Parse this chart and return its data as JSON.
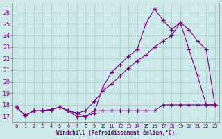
{
  "xlabel": "Windchill (Refroidissement éolien,°C)",
  "background_color": "#cce8e8",
  "line_color": "#800080",
  "grid_color": "#aacccc",
  "xlim": [
    -0.5,
    23.5
  ],
  "ylim": [
    16.5,
    26.8
  ],
  "xticks": [
    0,
    1,
    2,
    3,
    4,
    5,
    6,
    7,
    8,
    9,
    10,
    11,
    12,
    13,
    14,
    15,
    16,
    17,
    18,
    19,
    20,
    21,
    22,
    23
  ],
  "yticks": [
    17,
    18,
    19,
    20,
    21,
    22,
    23,
    24,
    25,
    26
  ],
  "line1_x": [
    0,
    1,
    2,
    3,
    4,
    5,
    6,
    7,
    8,
    9,
    10,
    11,
    12,
    13,
    14,
    15,
    16,
    17,
    18,
    19,
    20,
    21,
    22,
    23
  ],
  "line1_y": [
    17.8,
    17.1,
    17.5,
    17.5,
    17.6,
    17.8,
    17.5,
    17.0,
    17.0,
    17.5,
    17.5,
    17.5,
    17.5,
    17.5,
    17.5,
    17.5,
    17.5,
    18.0,
    18.0,
    18.0,
    18.0,
    18.0,
    18.0,
    18.0
  ],
  "line2_x": [
    0,
    1,
    2,
    3,
    4,
    5,
    6,
    7,
    8,
    9,
    10,
    11,
    12,
    13,
    14,
    15,
    16,
    17,
    18,
    19,
    20,
    21,
    22,
    23
  ],
  "line2_y": [
    17.8,
    17.1,
    17.5,
    17.5,
    17.6,
    17.8,
    17.5,
    17.3,
    17.5,
    18.3,
    19.2,
    19.8,
    20.5,
    21.2,
    21.8,
    22.3,
    23.0,
    23.5,
    24.0,
    25.1,
    24.5,
    23.5,
    22.8,
    18.0
  ],
  "line3_x": [
    0,
    1,
    2,
    3,
    4,
    5,
    6,
    7,
    8,
    9,
    10,
    11,
    12,
    13,
    14,
    15,
    16,
    17,
    18,
    19,
    20,
    21,
    22,
    23
  ],
  "line3_y": [
    17.8,
    17.1,
    17.5,
    17.5,
    17.6,
    17.8,
    17.5,
    17.3,
    17.0,
    17.3,
    19.5,
    20.8,
    21.5,
    22.2,
    22.8,
    25.0,
    26.3,
    25.3,
    24.5,
    25.1,
    22.8,
    20.5,
    18.0,
    18.0
  ]
}
